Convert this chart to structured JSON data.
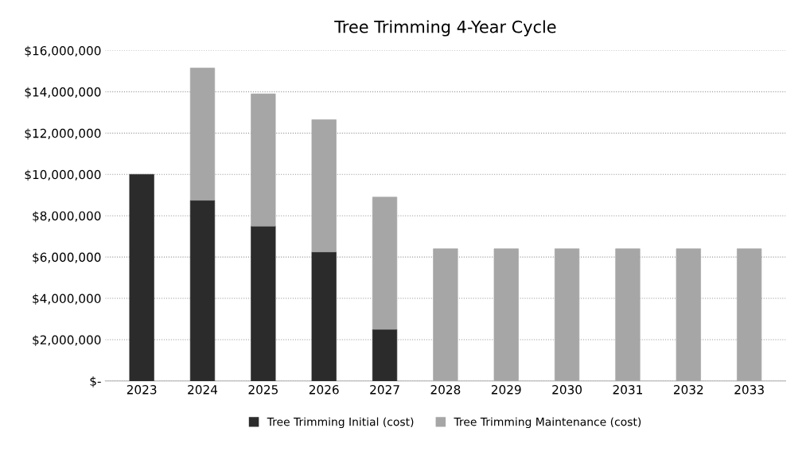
{
  "chart_data": {
    "type": "bar",
    "title": "Tree Trimming 4-Year Cycle",
    "stacked": true,
    "categories": [
      "2023",
      "2024",
      "2025",
      "2026",
      "2027",
      "2028",
      "2029",
      "2030",
      "2031",
      "2032",
      "2033"
    ],
    "series": [
      {
        "name": "Tree Trimming Initial (cost)",
        "color": "#2b2b2b",
        "values": [
          10000000,
          8750000,
          7500000,
          6250000,
          2500000,
          0,
          0,
          0,
          0,
          0,
          0
        ]
      },
      {
        "name": "Tree Trimming Maintenance (cost)",
        "color": "#a6a6a6",
        "values": [
          0,
          6400000,
          6400000,
          6400000,
          6400000,
          6400000,
          6400000,
          6400000,
          6400000,
          6400000,
          6400000
        ]
      }
    ],
    "ylim": [
      0,
      16000000
    ],
    "yticks": [
      {
        "value": 0,
        "label": "$-"
      },
      {
        "value": 2000000,
        "label": "$2,000,000"
      },
      {
        "value": 4000000,
        "label": "$4,000,000"
      },
      {
        "value": 6000000,
        "label": "$6,000,000"
      },
      {
        "value": 8000000,
        "label": "$8,000,000"
      },
      {
        "value": 10000000,
        "label": "$10,000,000"
      },
      {
        "value": 12000000,
        "label": "$12,000,000"
      },
      {
        "value": 14000000,
        "label": "$14,000,000"
      },
      {
        "value": 16000000,
        "label": "$16,000,000"
      }
    ],
    "grid": "y",
    "legend": "bottom"
  }
}
